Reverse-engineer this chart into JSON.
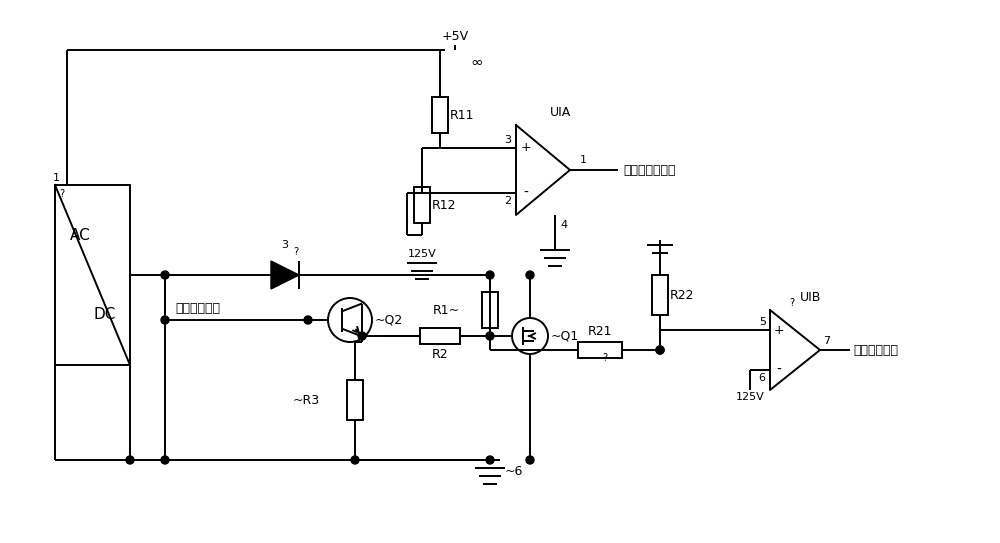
{
  "bg_color": "#ffffff",
  "line_color": "#000000",
  "line_width": 1.4,
  "font_size": 9,
  "labels": {
    "ac": "AC",
    "dc": "DC",
    "r11": "R11",
    "r12": "R12",
    "r1": "R1~",
    "r2": "R2",
    "r3": "~R3",
    "r21": "R21",
    "r22": "R22",
    "q1": "~Q1",
    "q2": "~Q2",
    "uia": "UIA",
    "uib": "UIB",
    "vcc": "+5V",
    "v125_uia": "125V",
    "v125_uib": "125V",
    "v6": "~6",
    "charge_fault": "充电机故障信号",
    "battery_fault": "电池故障信号",
    "charge_ctrl": "充电控制信号",
    "infinity": "∞",
    "pin1": "1",
    "pin2": "2",
    "pin3": "3",
    "pin4": "4",
    "pin5": "5",
    "pin6": "6",
    "pin7": "7",
    "acdc_pin1": "1",
    "acdc_pin1b": "?",
    "diode_pin": "3",
    "diode_pinb": "?"
  }
}
